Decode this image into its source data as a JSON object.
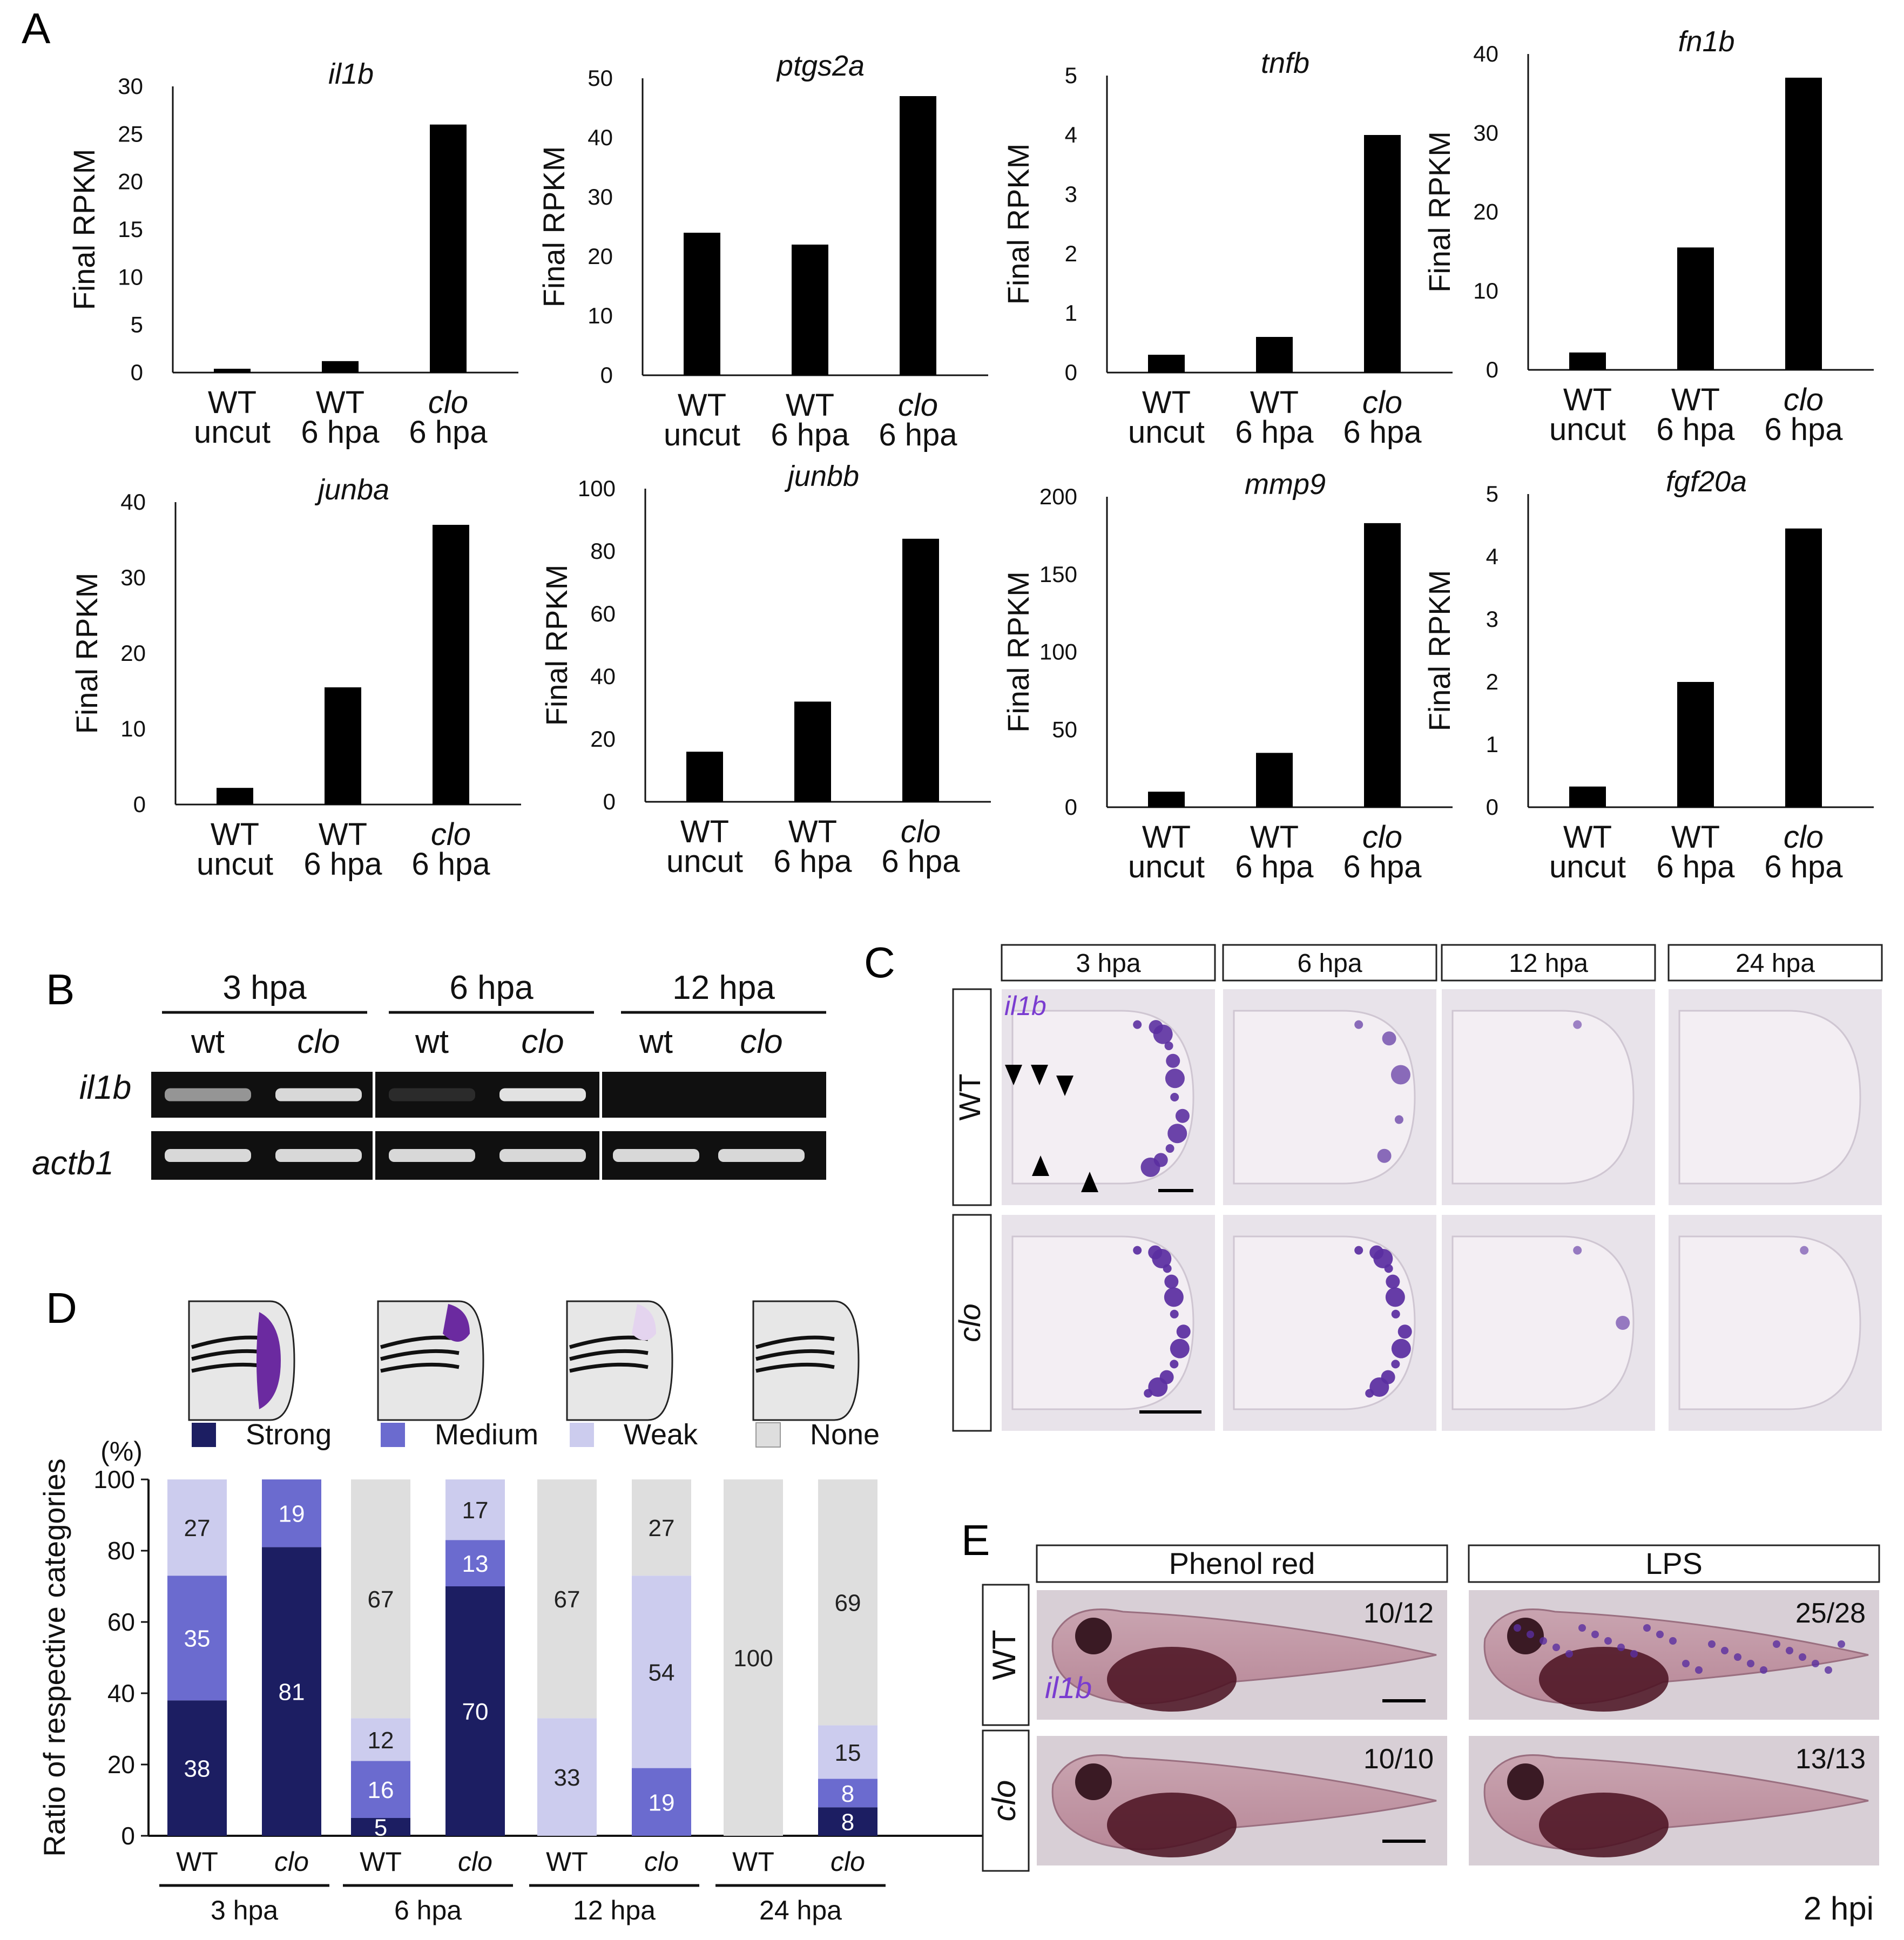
{
  "panel_labels": {
    "a": "A",
    "b": "B",
    "c": "C",
    "d": "D",
    "e": "E"
  },
  "colors": {
    "bar": "#000000",
    "strong": "#1c1e62",
    "medium": "#6b6bcf",
    "weak": "#ccccee",
    "none": "#dedede",
    "stain": "#5a2ea0",
    "gel_bg": "#101010",
    "gel_band": "#eeeeee"
  },
  "chart_data": [
    {
      "type": "bar",
      "title": "il1b",
      "ylabel": "Final RPKM",
      "ylim": [
        0,
        30
      ],
      "yticks": [
        "0",
        "5",
        "10",
        "15",
        "20",
        "25",
        "30"
      ],
      "categories": [
        [
          "WT",
          "uncut"
        ],
        [
          "WT",
          "6 hpa"
        ],
        [
          "clo",
          "6 hpa"
        ]
      ],
      "values": [
        0.4,
        1.2,
        26
      ]
    },
    {
      "type": "bar",
      "title": "ptgs2a",
      "ylabel": "Final RPKM",
      "ylim": [
        0,
        50
      ],
      "yticks": [
        "0",
        "10",
        "20",
        "30",
        "40",
        "50"
      ],
      "categories": [
        [
          "WT",
          "uncut"
        ],
        [
          "WT",
          "6 hpa"
        ],
        [
          "clo",
          "6 hpa"
        ]
      ],
      "values": [
        24,
        22,
        47
      ]
    },
    {
      "type": "bar",
      "title": "tnfb",
      "ylabel": "Final RPKM",
      "ylim": [
        0,
        5
      ],
      "yticks": [
        "0",
        "1",
        "2",
        "3",
        "4",
        "5"
      ],
      "categories": [
        [
          "WT",
          "uncut"
        ],
        [
          "WT",
          "6 hpa"
        ],
        [
          "clo",
          "6 hpa"
        ]
      ],
      "values": [
        0.3,
        0.6,
        4
      ]
    },
    {
      "type": "bar",
      "title": "fn1b",
      "ylabel": "Final RPKM",
      "ylim": [
        0,
        40
      ],
      "yticks": [
        "0",
        "10",
        "20",
        "30",
        "40"
      ],
      "categories": [
        [
          "WT",
          "uncut"
        ],
        [
          "WT",
          "6 hpa"
        ],
        [
          "clo",
          "6 hpa"
        ]
      ],
      "values": [
        2.2,
        15.5,
        37
      ]
    },
    {
      "type": "bar",
      "title": "junba",
      "ylabel": "Final RPKM",
      "ylim": [
        0,
        40
      ],
      "yticks": [
        "0",
        "10",
        "20",
        "30",
        "40"
      ],
      "categories": [
        [
          "WT",
          "uncut"
        ],
        [
          "WT",
          "6 hpa"
        ],
        [
          "clo",
          "6 hpa"
        ]
      ],
      "values": [
        2.2,
        15.5,
        37
      ]
    },
    {
      "type": "bar",
      "title": "junbb",
      "ylabel": "Final RPKM",
      "ylim": [
        0,
        100
      ],
      "yticks": [
        "0",
        "20",
        "40",
        "60",
        "80",
        "100"
      ],
      "categories": [
        [
          "WT",
          "uncut"
        ],
        [
          "WT",
          "6 hpa"
        ],
        [
          "clo",
          "6 hpa"
        ]
      ],
      "values": [
        16,
        32,
        84
      ]
    },
    {
      "type": "bar",
      "title": "mmp9",
      "ylabel": "Final RPKM",
      "ylim": [
        0,
        200
      ],
      "yticks": [
        "0",
        "50",
        "100",
        "150",
        "200"
      ],
      "categories": [
        [
          "WT",
          "uncut"
        ],
        [
          "WT",
          "6 hpa"
        ],
        [
          "clo",
          "6 hpa"
        ]
      ],
      "values": [
        10,
        35,
        183
      ]
    },
    {
      "type": "bar",
      "title": "fgf20a",
      "ylabel": "Final RPKM",
      "ylim": [
        0,
        5
      ],
      "yticks": [
        "0",
        "1",
        "2",
        "3",
        "4",
        "5"
      ],
      "categories": [
        [
          "WT",
          "uncut"
        ],
        [
          "WT",
          "6 hpa"
        ],
        [
          "clo",
          "6 hpa"
        ]
      ],
      "values": [
        0.33,
        2,
        4.45
      ]
    },
    {
      "type": "bar",
      "stacked": true,
      "ylabel": "Ratio of  respective categories",
      "yunit": "(%)",
      "ylim": [
        0,
        100
      ],
      "yticks": [
        "0",
        "20",
        "40",
        "60",
        "80",
        "100"
      ],
      "legend": [
        "Strong",
        "Medium",
        "Weak",
        "None"
      ],
      "categories": [
        "WT",
        "clo",
        "WT",
        "clo",
        "WT",
        "clo",
        "WT",
        "clo"
      ],
      "groups": [
        "3 hpa",
        "6 hpa",
        "12 hpa",
        "24 hpa"
      ],
      "series": [
        {
          "name": "Strong",
          "values": [
            38,
            81,
            5,
            70,
            0,
            0,
            0,
            8
          ]
        },
        {
          "name": "Medium",
          "values": [
            35,
            19,
            16,
            13,
            0,
            19,
            0,
            8
          ]
        },
        {
          "name": "Weak",
          "values": [
            27,
            0,
            12,
            17,
            33,
            54,
            0,
            15
          ]
        },
        {
          "name": "None",
          "values": [
            0,
            0,
            67,
            0,
            67,
            27,
            100,
            69
          ]
        }
      ],
      "labels": [
        [
          "38",
          "35",
          "27",
          ""
        ],
        [
          "81",
          "19",
          "",
          ""
        ],
        [
          "5",
          "16",
          "12",
          "67"
        ],
        [
          "70",
          "13",
          "17",
          ""
        ],
        [
          "",
          "",
          "33",
          "67"
        ],
        [
          "",
          "19",
          "54",
          "27"
        ],
        [
          "",
          "",
          "",
          "100"
        ],
        [
          "8",
          "8",
          "15",
          "69"
        ]
      ]
    }
  ],
  "panel_b": {
    "groups": [
      "3 hpa",
      "6 hpa",
      "12 hpa"
    ],
    "lanes": [
      "wt",
      "clo",
      "wt",
      "clo",
      "wt",
      "clo"
    ],
    "genes": [
      "il1b",
      "actb1"
    ],
    "il1b_band": [
      0.6,
      0.9,
      0.12,
      0.95,
      0,
      0
    ],
    "actb1_band": [
      0.9,
      0.9,
      0.9,
      0.9,
      0.9,
      0.9
    ]
  },
  "panel_c": {
    "columns": [
      "3 hpa",
      "6 hpa",
      "12 hpa",
      "24 hpa"
    ],
    "rows": [
      "WT",
      "clo"
    ],
    "stain_label": "il1b",
    "stain": [
      [
        0.85,
        0.35,
        0.06,
        0.02
      ],
      [
        0.95,
        0.95,
        0.15,
        0.08
      ]
    ]
  },
  "panel_e": {
    "columns": [
      "Phenol red",
      "LPS"
    ],
    "rows": [
      "WT",
      "clo"
    ],
    "counts": [
      [
        "10/12",
        "25/28"
      ],
      [
        "10/10",
        "13/13"
      ]
    ],
    "stain_label": "il1b",
    "footer": "2 hpi"
  }
}
